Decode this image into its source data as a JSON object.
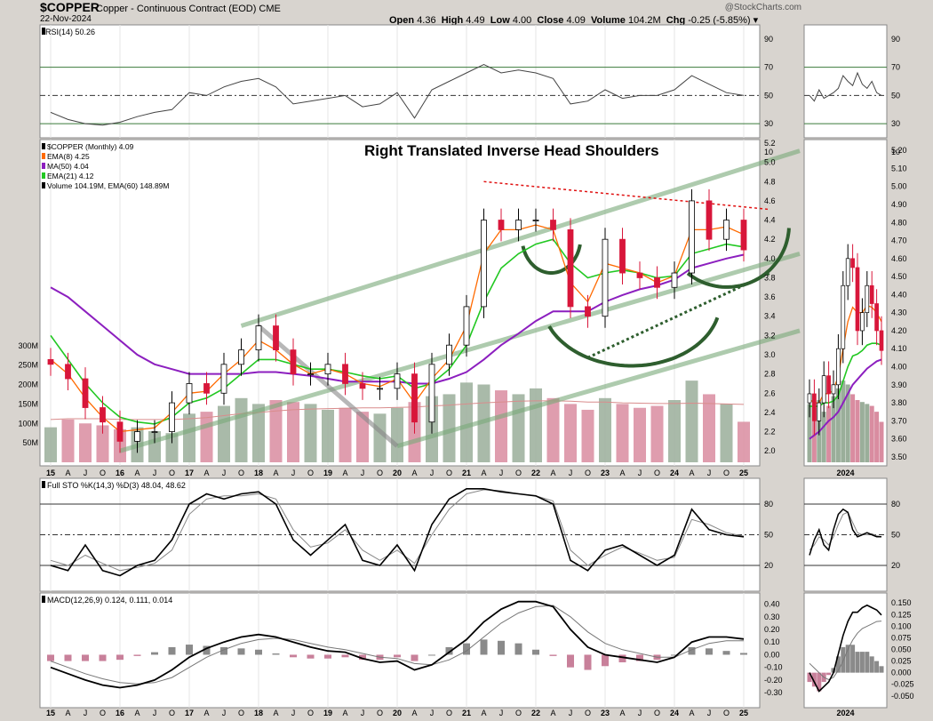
{
  "header": {
    "symbol": "$COPPER",
    "description": "Copper - Continuous Contract (EOD)",
    "exchange": "CME",
    "date": "22-Nov-2024",
    "open_label": "Open",
    "open": "4.36",
    "high_label": "High",
    "high": "4.49",
    "low_label": "Low",
    "low": "4.00",
    "close_label": "Close",
    "close": "4.09",
    "volume_label": "Volume",
    "volume": "104.2M",
    "chg_label": "Chg",
    "chg": "-0.25 (-5.85%)",
    "brand": "@StockCharts.com"
  },
  "colors": {
    "background": "#d8d4cf",
    "panel": "#ffffff",
    "candle_up": "#ffffff",
    "candle_down": "#d8163a",
    "ema8": "#ff6a00",
    "ma50": "#8c1fbf",
    "ema21": "#22c822",
    "volume_up": "#9aae9a",
    "volume_down": "#d98ca0",
    "trendline": "#7aaa7a",
    "resistance": "#e01010",
    "arc": "#2e5e2e"
  },
  "chart_data": [
    {
      "type": "line",
      "panel": "rsi",
      "legend": "RSI(14) 50.26",
      "ylim": [
        20,
        100
      ],
      "yticks": [
        "90",
        "70",
        "50",
        "30",
        "10"
      ],
      "guide_levels": [
        70,
        50,
        30
      ],
      "x": [
        "2015-01",
        "2015-04",
        "2015-07",
        "2015-10",
        "2016-01",
        "2016-04",
        "2016-07",
        "2016-10",
        "2017-01",
        "2017-04",
        "2017-07",
        "2017-10",
        "2018-01",
        "2018-04",
        "2018-07",
        "2018-10",
        "2019-01",
        "2019-04",
        "2019-07",
        "2019-10",
        "2020-01",
        "2020-04",
        "2020-07",
        "2020-10",
        "2021-01",
        "2021-04",
        "2021-07",
        "2021-10",
        "2022-01",
        "2022-04",
        "2022-07",
        "2022-10",
        "2023-01",
        "2023-04",
        "2023-07",
        "2023-10",
        "2024-01",
        "2024-04",
        "2024-07",
        "2024-10",
        "2024-11"
      ],
      "series": [
        {
          "name": "RSI(14)",
          "values": [
            38,
            33,
            30,
            29,
            31,
            35,
            38,
            40,
            52,
            50,
            56,
            60,
            62,
            56,
            44,
            46,
            48,
            50,
            42,
            44,
            52,
            34,
            54,
            60,
            66,
            72,
            66,
            68,
            66,
            62,
            44,
            46,
            54,
            48,
            50,
            50,
            54,
            64,
            58,
            52,
            50
          ]
        }
      ]
    },
    {
      "type": "candlestick",
      "panel": "price",
      "title": "Right Translated Inverse Head Shoulders",
      "legend": [
        "$COPPER (Monthly) 4.09",
        "EMA(8) 4.25",
        "MA(50) 4.04",
        "EMA(21) 4.12",
        "Volume 104.19M, EMA(60) 148.89M"
      ],
      "ylim": [
        1.9,
        5.2
      ],
      "yticks": [
        "5.2",
        "5.0",
        "4.8",
        "4.6",
        "4.4",
        "4.2",
        "4.0",
        "3.8",
        "3.6",
        "3.4",
        "3.2",
        "3.0",
        "2.8",
        "2.6",
        "2.4",
        "2.2",
        "2.0"
      ],
      "volume_ticks": [
        "300M",
        "250M",
        "200M",
        "150M",
        "100M",
        "50M"
      ],
      "xticks": [
        "15",
        "A",
        "J",
        "O",
        "16",
        "A",
        "J",
        "O",
        "17",
        "A",
        "J",
        "O",
        "18",
        "A",
        "J",
        "O",
        "19",
        "A",
        "J",
        "O",
        "20",
        "A",
        "J",
        "O",
        "21",
        "A",
        "J",
        "O",
        "22",
        "A",
        "J",
        "O",
        "23",
        "A",
        "J",
        "O",
        "24",
        "A",
        "J",
        "O",
        "25"
      ],
      "x": [
        "2015-01",
        "2015-04",
        "2015-07",
        "2015-10",
        "2016-01",
        "2016-04",
        "2016-07",
        "2016-10",
        "2017-01",
        "2017-04",
        "2017-07",
        "2017-10",
        "2018-01",
        "2018-04",
        "2018-07",
        "2018-10",
        "2019-01",
        "2019-04",
        "2019-07",
        "2019-10",
        "2020-01",
        "2020-04",
        "2020-07",
        "2020-10",
        "2021-01",
        "2021-04",
        "2021-07",
        "2021-10",
        "2022-01",
        "2022-04",
        "2022-07",
        "2022-10",
        "2023-01",
        "2023-04",
        "2023-07",
        "2023-10",
        "2024-01",
        "2024-04",
        "2024-07",
        "2024-10",
        "2024-11"
      ],
      "close": [
        2.9,
        2.75,
        2.45,
        2.3,
        2.1,
        2.2,
        2.2,
        2.5,
        2.7,
        2.6,
        2.9,
        3.05,
        3.3,
        3.05,
        2.8,
        2.8,
        2.9,
        2.7,
        2.65,
        2.65,
        2.8,
        2.3,
        2.9,
        3.1,
        3.5,
        4.4,
        4.3,
        4.4,
        4.4,
        4.3,
        3.5,
        3.4,
        4.2,
        3.85,
        3.8,
        3.7,
        3.85,
        4.6,
        4.2,
        4.4,
        4.09
      ],
      "ema8": [
        2.95,
        2.8,
        2.55,
        2.35,
        2.2,
        2.22,
        2.24,
        2.4,
        2.6,
        2.62,
        2.8,
        2.95,
        3.15,
        3.05,
        2.9,
        2.8,
        2.85,
        2.8,
        2.7,
        2.67,
        2.75,
        2.5,
        2.75,
        2.95,
        3.3,
        4.05,
        4.3,
        4.3,
        4.35,
        4.3,
        3.75,
        3.55,
        3.95,
        3.9,
        3.85,
        3.75,
        3.82,
        4.3,
        4.3,
        4.33,
        4.25
      ],
      "ema21": [
        3.2,
        2.95,
        2.7,
        2.5,
        2.35,
        2.3,
        2.28,
        2.35,
        2.5,
        2.55,
        2.65,
        2.8,
        2.95,
        2.95,
        2.9,
        2.85,
        2.85,
        2.82,
        2.78,
        2.75,
        2.78,
        2.65,
        2.7,
        2.85,
        3.1,
        3.55,
        3.9,
        4.05,
        4.15,
        4.2,
        3.95,
        3.8,
        3.85,
        3.88,
        3.85,
        3.8,
        3.82,
        4.05,
        4.1,
        4.15,
        4.12
      ],
      "ma50": [
        3.7,
        3.6,
        3.45,
        3.3,
        3.15,
        3.0,
        2.9,
        2.85,
        2.8,
        2.8,
        2.8,
        2.8,
        2.82,
        2.82,
        2.8,
        2.78,
        2.75,
        2.72,
        2.72,
        2.72,
        2.72,
        2.7,
        2.7,
        2.75,
        2.82,
        2.95,
        3.1,
        3.22,
        3.35,
        3.45,
        3.45,
        3.45,
        3.55,
        3.62,
        3.68,
        3.72,
        3.78,
        3.9,
        3.95,
        4.0,
        4.04
      ],
      "volume_m": [
        90,
        110,
        100,
        95,
        85,
        90,
        80,
        75,
        125,
        130,
        145,
        165,
        150,
        160,
        155,
        150,
        135,
        140,
        130,
        125,
        140,
        155,
        170,
        175,
        205,
        200,
        185,
        175,
        190,
        165,
        150,
        135,
        165,
        150,
        140,
        145,
        160,
        210,
        175,
        150,
        104.19
      ],
      "volume_ema60_m": [
        110,
        112,
        112,
        112,
        110,
        110,
        110,
        110,
        112,
        115,
        120,
        125,
        128,
        132,
        135,
        137,
        138,
        139,
        140,
        140,
        141,
        142,
        145,
        147,
        150,
        153,
        155,
        157,
        158,
        158,
        157,
        155,
        155,
        153,
        152,
        151,
        151,
        152,
        151,
        150,
        148.89
      ]
    },
    {
      "type": "line",
      "panel": "stochastic",
      "legend": "Full STO %K(14,3) %D(3) 48.04, 48.62",
      "ylim": [
        0,
        100
      ],
      "yticks": [
        "80",
        "50",
        "20"
      ],
      "guide_levels": [
        80,
        50,
        20
      ],
      "x": [
        "2015-01",
        "2015-04",
        "2015-07",
        "2015-10",
        "2016-01",
        "2016-04",
        "2016-07",
        "2016-10",
        "2017-01",
        "2017-04",
        "2017-07",
        "2017-10",
        "2018-01",
        "2018-04",
        "2018-07",
        "2018-10",
        "2019-01",
        "2019-04",
        "2019-07",
        "2019-10",
        "2020-01",
        "2020-04",
        "2020-07",
        "2020-10",
        "2021-01",
        "2021-04",
        "2021-07",
        "2021-10",
        "2022-01",
        "2022-04",
        "2022-07",
        "2022-10",
        "2023-01",
        "2023-04",
        "2023-07",
        "2023-10",
        "2024-01",
        "2024-04",
        "2024-07",
        "2024-10",
        "2024-11"
      ],
      "series": [
        {
          "name": "%K",
          "values": [
            20,
            15,
            40,
            15,
            10,
            20,
            25,
            45,
            80,
            90,
            85,
            90,
            92,
            80,
            45,
            30,
            45,
            60,
            25,
            20,
            40,
            15,
            60,
            85,
            95,
            95,
            92,
            90,
            88,
            80,
            25,
            15,
            35,
            40,
            30,
            20,
            30,
            75,
            55,
            50,
            48.04
          ]
        },
        {
          "name": "%D",
          "values": [
            25,
            20,
            30,
            22,
            15,
            18,
            22,
            35,
            70,
            85,
            88,
            88,
            90,
            85,
            55,
            38,
            42,
            55,
            35,
            25,
            35,
            22,
            50,
            75,
            90,
            94,
            93,
            90,
            88,
            83,
            35,
            20,
            30,
            38,
            32,
            25,
            28,
            65,
            60,
            52,
            48.62
          ]
        }
      ]
    },
    {
      "type": "line",
      "panel": "macd",
      "legend": "MACD(12,26,9) 0.124, 0.111, 0.014",
      "ylim": [
        -0.32,
        0.46
      ],
      "yticks": [
        "0.40",
        "0.30",
        "0.20",
        "0.10",
        "0.00",
        "-0.10",
        "-0.20",
        "-0.30"
      ],
      "xticks": [
        "15",
        "A",
        "J",
        "O",
        "16",
        "A",
        "J",
        "O",
        "17",
        "A",
        "J",
        "O",
        "18",
        "A",
        "J",
        "O",
        "19",
        "A",
        "J",
        "O",
        "20",
        "A",
        "J",
        "O",
        "21",
        "A",
        "J",
        "O",
        "22",
        "A",
        "J",
        "O",
        "23",
        "A",
        "J",
        "O",
        "24",
        "A",
        "J",
        "O",
        "25"
      ],
      "x": [
        "2015-01",
        "2015-04",
        "2015-07",
        "2015-10",
        "2016-01",
        "2016-04",
        "2016-07",
        "2016-10",
        "2017-01",
        "2017-04",
        "2017-07",
        "2017-10",
        "2018-01",
        "2018-04",
        "2018-07",
        "2018-10",
        "2019-01",
        "2019-04",
        "2019-07",
        "2019-10",
        "2020-01",
        "2020-04",
        "2020-07",
        "2020-10",
        "2021-01",
        "2021-04",
        "2021-07",
        "2021-10",
        "2022-01",
        "2022-04",
        "2022-07",
        "2022-10",
        "2023-01",
        "2023-04",
        "2023-07",
        "2023-10",
        "2024-01",
        "2024-04",
        "2024-07",
        "2024-10",
        "2024-11"
      ],
      "series": [
        {
          "name": "MACD",
          "values": [
            -0.1,
            -0.15,
            -0.2,
            -0.24,
            -0.26,
            -0.24,
            -0.2,
            -0.12,
            -0.02,
            0.05,
            0.1,
            0.14,
            0.16,
            0.14,
            0.1,
            0.06,
            0.03,
            0.02,
            -0.03,
            -0.06,
            -0.05,
            -0.12,
            -0.08,
            0.02,
            0.12,
            0.26,
            0.36,
            0.42,
            0.42,
            0.38,
            0.2,
            0.06,
            0.0,
            -0.02,
            -0.04,
            -0.06,
            -0.02,
            0.1,
            0.14,
            0.14,
            0.124
          ]
        },
        {
          "name": "Signal",
          "values": [
            -0.05,
            -0.1,
            -0.15,
            -0.19,
            -0.22,
            -0.23,
            -0.22,
            -0.18,
            -0.1,
            -0.02,
            0.04,
            0.09,
            0.12,
            0.13,
            0.12,
            0.09,
            0.06,
            0.04,
            0.01,
            -0.02,
            -0.03,
            -0.07,
            -0.08,
            -0.04,
            0.03,
            0.14,
            0.25,
            0.33,
            0.38,
            0.39,
            0.3,
            0.18,
            0.09,
            0.04,
            0.01,
            -0.02,
            -0.02,
            0.04,
            0.09,
            0.11,
            0.111
          ]
        },
        {
          "name": "Histogram",
          "values": [
            -0.05,
            -0.05,
            -0.05,
            -0.05,
            -0.04,
            -0.01,
            0.02,
            0.06,
            0.08,
            0.07,
            0.06,
            0.05,
            0.04,
            0.01,
            -0.02,
            -0.03,
            -0.03,
            -0.02,
            -0.04,
            -0.04,
            -0.02,
            -0.05,
            0.0,
            0.06,
            0.09,
            0.12,
            0.11,
            0.09,
            0.04,
            -0.01,
            -0.1,
            -0.12,
            -0.09,
            -0.06,
            -0.05,
            -0.04,
            0.0,
            0.06,
            0.05,
            0.03,
            0.014
          ]
        }
      ]
    },
    {
      "type": "line",
      "panel": "rsi-inset",
      "ylim": [
        20,
        100
      ],
      "yticks": [
        "90",
        "70",
        "50",
        "30",
        "10"
      ],
      "series": [
        {
          "name": "RSI(14)",
          "values": [
            50,
            46,
            54,
            48,
            50,
            52,
            55,
            64,
            60,
            57,
            66,
            58,
            55,
            60,
            52,
            50
          ]
        }
      ]
    },
    {
      "type": "candlestick",
      "panel": "price-inset",
      "ylim": [
        3.48,
        5.24
      ],
      "yticks": [
        "5.20",
        "5.10",
        "5.00",
        "4.90",
        "4.80",
        "4.70",
        "4.60",
        "4.50",
        "4.40",
        "4.30",
        "4.20",
        "4.10",
        "4.00",
        "3.90",
        "3.80",
        "3.70",
        "3.60",
        "3.50"
      ],
      "xticks": [
        "2024"
      ],
      "close": [
        3.85,
        3.7,
        3.8,
        3.95,
        3.85,
        3.9,
        4.1,
        4.45,
        4.6,
        4.55,
        4.2,
        4.3,
        4.45,
        4.35,
        4.2,
        4.09
      ],
      "ema8": [
        3.82,
        3.8,
        3.8,
        3.85,
        3.85,
        3.87,
        3.95,
        4.1,
        4.25,
        4.33,
        4.3,
        4.3,
        4.34,
        4.33,
        4.3,
        4.25
      ],
      "ema21": [
        3.78,
        3.78,
        3.78,
        3.8,
        3.8,
        3.81,
        3.84,
        3.92,
        4.0,
        4.06,
        4.07,
        4.09,
        4.12,
        4.13,
        4.13,
        4.12
      ],
      "ma50": [
        3.6,
        3.62,
        3.64,
        3.67,
        3.7,
        3.72,
        3.75,
        3.8,
        3.85,
        3.9,
        3.93,
        3.96,
        3.99,
        4.01,
        4.03,
        4.04
      ],
      "volume_m": [
        150,
        140,
        160,
        130,
        145,
        170,
        190,
        210,
        200,
        175,
        160,
        155,
        150,
        145,
        130,
        104
      ]
    },
    {
      "type": "line",
      "panel": "stochastic-inset",
      "ylim": [
        0,
        100
      ],
      "yticks": [
        "80",
        "50",
        "20"
      ],
      "series": [
        {
          "name": "%K",
          "values": [
            30,
            45,
            55,
            40,
            35,
            55,
            70,
            75,
            72,
            55,
            48,
            50,
            52,
            50,
            48,
            48
          ]
        },
        {
          "name": "%D",
          "values": [
            35,
            40,
            48,
            45,
            40,
            48,
            60,
            70,
            72,
            62,
            52,
            50,
            50,
            51,
            49,
            48
          ]
        }
      ]
    },
    {
      "type": "line",
      "panel": "macd-inset",
      "ylim": [
        -0.06,
        0.16
      ],
      "yticks": [
        "0.150",
        "0.125",
        "0.100",
        "0.075",
        "0.050",
        "0.025",
        "0.000",
        "-0.025",
        "-0.050"
      ],
      "xticks": [
        "2024"
      ],
      "series": [
        {
          "name": "MACD",
          "values": [
            0.0,
            -0.02,
            -0.04,
            -0.03,
            -0.02,
            0.0,
            0.04,
            0.08,
            0.11,
            0.13,
            0.13,
            0.14,
            0.145,
            0.14,
            0.135,
            0.124
          ]
        },
        {
          "name": "Signal",
          "values": [
            0.02,
            0.01,
            0.0,
            -0.01,
            -0.015,
            -0.01,
            0.005,
            0.025,
            0.05,
            0.07,
            0.085,
            0.095,
            0.1,
            0.105,
            0.11,
            0.111
          ]
        },
        {
          "name": "Histogram",
          "values": [
            -0.02,
            -0.03,
            -0.04,
            -0.02,
            -0.005,
            0.01,
            0.035,
            0.055,
            0.06,
            0.06,
            0.045,
            0.045,
            0.045,
            0.035,
            0.025,
            0.014
          ]
        }
      ]
    }
  ]
}
